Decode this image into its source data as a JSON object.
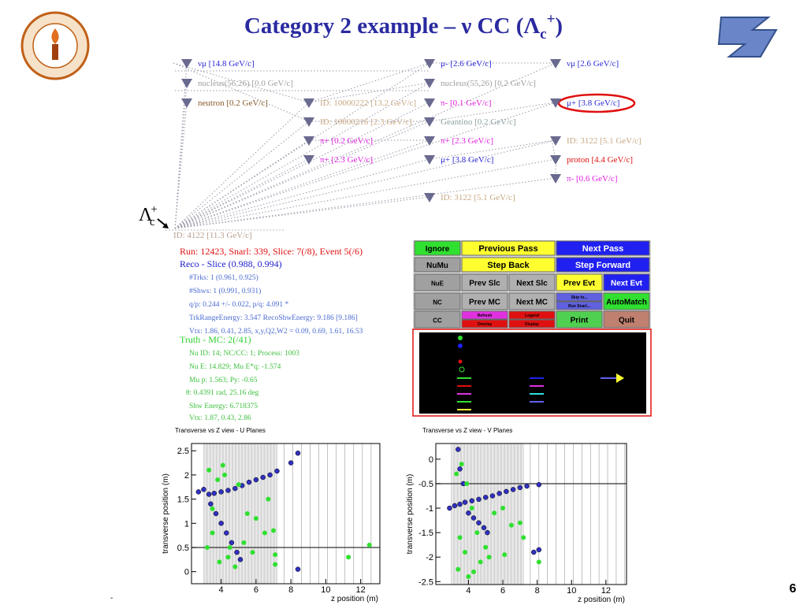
{
  "header": {
    "title": {
      "main": "Category 2 example – ν CC (Λ",
      "sub": "c",
      "sup": "+",
      "close": ")"
    },
    "page_number": "6",
    "footnote": "-"
  },
  "decay_tree": {
    "root_symbol": {
      "base": "Λ",
      "sub": "c",
      "sup": "+"
    },
    "root_label": "ID: 4122 [11.3 GeV/c]",
    "nodes": [
      {
        "label": "νμ [14.8 GeV/c]",
        "color": "#2a2ad8"
      },
      {
        "label": "nucleus(56,26) [0.0 GeV/c]",
        "color": "#a0a0a0"
      },
      {
        "label": "neutron [0.2 GeV/c]",
        "color": "#8b5a2b"
      },
      {
        "label": "ID: 10000222 [13.2 GeV/c]",
        "color": "#c8a882"
      },
      {
        "label": "ID: 10000216 [2.3 GeV/c]",
        "color": "#c8a882"
      },
      {
        "label": "π+ [0.2 GeV/c]",
        "color": "#e020e0"
      },
      {
        "label": "π+ [2.3 GeV/c]",
        "color": "#e020e0"
      },
      {
        "label": "μ- [2.6 GeV/c]",
        "color": "#2a2ad8"
      },
      {
        "label": "nucleus(55,26) [0.2 GeV/c]",
        "color": "#a0a0a0"
      },
      {
        "label": "π- [0.1 GeV/c]",
        "color": "#e020e0"
      },
      {
        "label": "Geantino [0.2 GeV/c]",
        "color": "#8aa0a0"
      },
      {
        "label": "π+ [2.3 GeV/c]",
        "color": "#e020e0"
      },
      {
        "label": "μ+ [3.8 GeV/c]",
        "color": "#2a2ad8"
      },
      {
        "label": "ID: 3122 [5.1 GeV/c]",
        "color": "#c8a882"
      },
      {
        "label": "νμ [2.6 GeV/c]",
        "color": "#2a2ad8"
      },
      {
        "label": "μ+ [3.8 GeV/c]",
        "color": "#2a2ad8"
      },
      {
        "label": "ID: 3122 [5.1 GeV/c]",
        "color": "#c8a882"
      },
      {
        "label": "proton [4.4 GeV/c]",
        "color": "#e01010"
      },
      {
        "label": "π- [0.6 GeV/c]",
        "color": "#e020e0"
      }
    ]
  },
  "info": {
    "lines": [
      {
        "text": "Run: 12423, Snarl: 339, Slice: 7(/8), Event 5(/6)",
        "color": "#e01010"
      },
      {
        "text": "Reco - Slice (0.988, 0.994)",
        "color": "#2020d0"
      },
      {
        "text": "#Trks: 1 (0.961, 0.925)",
        "color": "#4a6ad0"
      },
      {
        "text": "#Shws: 1 (0.991, 0.931)",
        "color": "#4a6ad0"
      },
      {
        "text": "q/p: 0.244 +/- 0.022,  p/q: 4.091 *",
        "color": "#4a6ad0"
      },
      {
        "text": "TrkRangeEnergy: 3.547    RecoShwEnergy: 9.186 [9.186]",
        "color": "#4a6ad0"
      },
      {
        "text": "Vtx: 1.86, 0.41, 2.85,  x,y,Q2,W2  = 0.09, 0.69, 1.61, 16.53",
        "color": "#4a6ad0"
      },
      {
        "text": "Truth - MC: 2(/41)",
        "color": "#30d030"
      },
      {
        "text": "Nu ID: 14;  NC/CC: 1;  Process: 1003",
        "color": "#40c040"
      },
      {
        "text": "Nu E: 14.829;  Mu E*q: -1.574",
        "color": "#40c040"
      },
      {
        "text": "Mu p: 1.563;  Py: -0.65",
        "color": "#40c040"
      },
      {
        "text": "θ: 0.4391 rad, 25.16 deg",
        "color": "#40c040"
      },
      {
        "text": "Shw Energy: 6.718375",
        "color": "#40c040"
      },
      {
        "text": "Vtx: 1.87, 0.43, 2.86",
        "color": "#40c040"
      }
    ]
  },
  "controls": {
    "buttons": [
      {
        "label": "Ignore",
        "color": "#30e030"
      },
      {
        "label": "Previous Pass",
        "color": "#ffff30"
      },
      {
        "label": "Next Pass",
        "color": "#2020f0"
      },
      {
        "label": "NuMu",
        "color": "#a0a0a0"
      },
      {
        "label": "Step Back",
        "color": "#ffff30"
      },
      {
        "label": "Step Forward",
        "color": "#2020f0"
      },
      {
        "label": "NuE",
        "color": "#a0a0a0"
      },
      {
        "label": "Prev Slc",
        "color": "#b0b0b0"
      },
      {
        "label": "Next Slc",
        "color": "#b0b0b0"
      },
      {
        "label": "Prev Evt",
        "color": "#ffff30"
      },
      {
        "label": "Next Evt",
        "color": "#2020f0"
      },
      {
        "label": "NC",
        "color": "#a0a0a0"
      },
      {
        "label": "Prev MC",
        "color": "#b0b0b0"
      },
      {
        "label": "Next MC",
        "color": "#b0b0b0"
      },
      {
        "label": "Skip to...",
        "color": "#6060e0"
      },
      {
        "label": "Run Snarl...",
        "color": "#6060e0"
      },
      {
        "label": "AutoMatch",
        "color": "#30e030"
      },
      {
        "label": "CC",
        "color": "#a0a0a0"
      },
      {
        "label": "Refresh",
        "color": "#e030e0"
      },
      {
        "label": "Legend",
        "color": "#e01010"
      },
      {
        "label": "Overlay",
        "color": "#e01010"
      },
      {
        "label": "Display",
        "color": "#e01010"
      },
      {
        "label": "Print",
        "color": "#50d050"
      },
      {
        "label": "Quit",
        "color": "#c08070"
      }
    ]
  },
  "plots": [
    {
      "title": "Transverse vs Z view - U Planes",
      "xlabel": "z position (m)",
      "ylabel": "transverse position (m)",
      "xlim": [
        2.3,
        13.1
      ],
      "ylim": [
        -0.25,
        2.65
      ],
      "xticks": [
        4,
        6,
        8,
        10,
        12
      ],
      "yticks": [
        0,
        0.5,
        1,
        1.5,
        2,
        2.5
      ],
      "hline": 0.5,
      "series": [
        {
          "color": "#3030c0",
          "x": [
            2.7,
            3.0,
            3.3,
            3.6,
            4.0,
            4.4,
            4.8,
            5.2,
            5.6,
            6.0,
            6.4,
            6.8,
            7.2,
            8.0,
            8.4,
            3.4,
            3.7,
            4.0,
            4.3,
            4.6,
            4.9,
            5.1,
            8.4
          ],
          "y": [
            1.65,
            1.7,
            1.6,
            1.62,
            1.65,
            1.68,
            1.72,
            1.78,
            1.85,
            1.9,
            1.95,
            2.0,
            2.08,
            2.25,
            2.45,
            1.4,
            1.2,
            1.0,
            0.8,
            0.6,
            0.4,
            0.25,
            0.05
          ]
        },
        {
          "color": "#30e030",
          "x": [
            3.3,
            3.5,
            3.8,
            4.2,
            4.5,
            5.0,
            5.5,
            6.0,
            6.5,
            7.0,
            3.2,
            3.9,
            4.4,
            4.8,
            5.3,
            6.7,
            7.1,
            11.3,
            12.5,
            3.5,
            4.1,
            5.8,
            7.1
          ],
          "y": [
            2.1,
            0.8,
            1.9,
            2.0,
            0.5,
            1.8,
            1.2,
            1.1,
            0.8,
            0.85,
            0.5,
            0.2,
            0.3,
            0.1,
            0.6,
            1.5,
            0.15,
            0.3,
            0.55,
            1.3,
            2.2,
            0.4,
            0.35
          ]
        }
      ]
    },
    {
      "title": "Transverse vs Z view - V Planes",
      "xlabel": "z position (m)",
      "ylabel": "transverse position (m)",
      "xlim": [
        2.1,
        13.2
      ],
      "ylim": [
        -2.56,
        0.32
      ],
      "xticks": [
        4,
        6,
        8,
        10,
        12
      ],
      "yticks": [
        0,
        -0.5,
        -1,
        -1.5,
        -2,
        -2.5
      ],
      "hline": -0.5,
      "series": [
        {
          "color": "#3030c0",
          "x": [
            2.9,
            3.2,
            3.5,
            3.8,
            4.2,
            4.6,
            5.0,
            5.4,
            5.8,
            6.2,
            6.6,
            7.0,
            7.4,
            8.1,
            3.5,
            3.7,
            4.0,
            4.3,
            4.6,
            4.9,
            5.1,
            3.4,
            7.8,
            8.1
          ],
          "y": [
            -1.0,
            -0.95,
            -0.92,
            -0.88,
            -0.85,
            -0.82,
            -0.78,
            -0.75,
            -0.7,
            -0.66,
            -0.62,
            -0.58,
            -0.55,
            -0.52,
            -0.2,
            -0.5,
            -1.1,
            -1.2,
            -1.3,
            -1.4,
            -1.5,
            0.2,
            -1.9,
            -1.85
          ]
        },
        {
          "color": "#30e030",
          "x": [
            3.3,
            3.6,
            3.9,
            4.2,
            4.5,
            5.0,
            5.5,
            6.0,
            6.5,
            7.2,
            3.4,
            3.8,
            4.3,
            4.7,
            5.2,
            6.1,
            7.0,
            8.1,
            3.5,
            4.0
          ],
          "y": [
            -0.3,
            -0.1,
            -0.5,
            -1.0,
            -1.5,
            -1.8,
            -1.1,
            -1.0,
            -1.35,
            -1.6,
            -2.25,
            -1.9,
            -2.3,
            -2.1,
            -2.0,
            -1.95,
            -1.3,
            -2.1,
            -1.6,
            -2.4
          ]
        }
      ]
    }
  ]
}
